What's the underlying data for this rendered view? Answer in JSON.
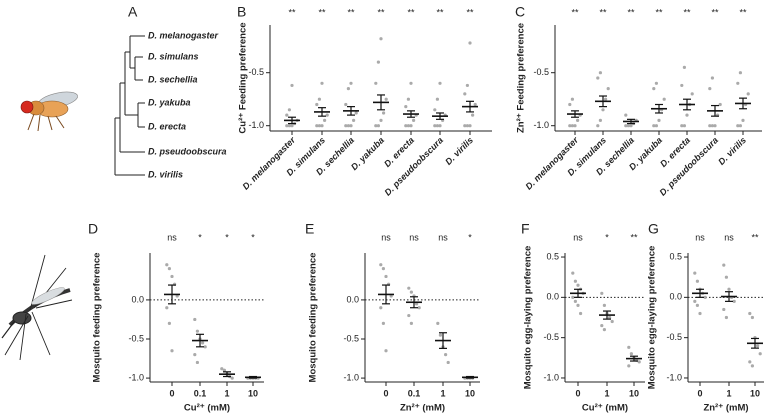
{
  "panel_a": {
    "label": "A",
    "species": [
      "D. melanogaster",
      "D. simulans",
      "D. sechellia",
      "D. yakuba",
      "D. erecta",
      "D. pseudoobscura",
      "D. virilis"
    ]
  },
  "chart_data": [
    {
      "type": "dot",
      "label": "B",
      "ylabel": "Cu²⁺ Feeding preference",
      "categories": [
        "D. melanogaster",
        "D. simulans",
        "D. sechellia",
        "D. yakuba",
        "D. erecta",
        "D. pseudoobscura",
        "D. virilis"
      ],
      "significance": [
        "**",
        "**",
        "**",
        "**",
        "**",
        "**",
        "**"
      ],
      "means": [
        -0.95,
        -0.87,
        -0.86,
        -0.78,
        -0.89,
        -0.91,
        -0.82
      ],
      "sems": [
        0.03,
        0.04,
        0.04,
        0.07,
        0.03,
        0.03,
        0.05
      ],
      "points": [
        [
          -1,
          -1,
          -1,
          -0.98,
          -0.95,
          -0.9,
          -0.85,
          -0.62
        ],
        [
          -1,
          -1,
          -1,
          -0.95,
          -0.9,
          -0.8,
          -0.75,
          -0.6
        ],
        [
          -1,
          -1,
          -1,
          -0.95,
          -0.88,
          -0.8,
          -0.65,
          -0.6
        ],
        [
          -1,
          -1,
          -0.95,
          -0.88,
          -0.75,
          -0.6,
          -0.4,
          -0.18
        ],
        [
          -1,
          -1,
          -1,
          -0.95,
          -0.9,
          -0.82,
          -0.75,
          -0.6
        ],
        [
          -1,
          -1,
          -1,
          -0.95,
          -0.9,
          -0.85,
          -0.75,
          -0.6
        ],
        [
          -1,
          -1,
          -1,
          -0.9,
          -0.8,
          -0.7,
          -0.62,
          -0.22
        ]
      ],
      "ylim": [
        -1.05,
        -0.05
      ],
      "yticks": [
        {
          "value": -1,
          "label": "-1.0"
        },
        -0.5
      ]
    },
    {
      "type": "dot",
      "label": "C",
      "ylabel": "Zn²⁺ Feeding preference",
      "categories": [
        "D. melanogaster",
        "D. simulans",
        "D. sechellia",
        "D. yakuba",
        "D. erecta",
        "D. pseudoobscura",
        "D. virilis"
      ],
      "significance": [
        "**",
        "**",
        "**",
        "**",
        "**",
        "**",
        "**"
      ],
      "means": [
        -0.89,
        -0.77,
        -0.96,
        -0.84,
        -0.8,
        -0.86,
        -0.79
      ],
      "sems": [
        0.03,
        0.05,
        0.02,
        0.04,
        0.05,
        0.05,
        0.05
      ],
      "points": [
        [
          -1,
          -1,
          -1,
          -0.95,
          -0.9,
          -0.8,
          -0.75
        ],
        [
          -1,
          -0.95,
          -0.85,
          -0.75,
          -0.65,
          -0.55,
          -0.5
        ],
        [
          -1,
          -1,
          -1,
          -0.98,
          -0.95,
          -0.9
        ],
        [
          -1,
          -1,
          -0.95,
          -0.85,
          -0.75,
          -0.65,
          -0.6
        ],
        [
          -1,
          -1,
          -0.9,
          -0.8,
          -0.7,
          -0.62,
          -0.45
        ],
        [
          -1,
          -1,
          -1,
          -0.9,
          -0.8,
          -0.65,
          -0.55
        ],
        [
          -1,
          -1,
          -0.95,
          -0.8,
          -0.7,
          -0.6,
          -0.5
        ]
      ],
      "ylim": [
        -1.05,
        -0.05
      ],
      "yticks": [
        {
          "value": -1,
          "label": "-1.0"
        },
        -0.5
      ]
    },
    {
      "type": "dot",
      "label": "D",
      "ylabel": "Mosquito feeding preference",
      "xlabel": "Cu²⁺ (mM)",
      "categories": [
        "0",
        "0.1",
        "1",
        "10"
      ],
      "significance": [
        "ns",
        "*",
        "*",
        "*"
      ],
      "means": [
        0.07,
        -0.52,
        -0.95,
        -0.99
      ],
      "sems": [
        0.12,
        0.08,
        0.03,
        0.01
      ],
      "points": [
        [
          0.45,
          0.4,
          0.3,
          0.2,
          0.05,
          -0.1,
          -0.3,
          -0.65
        ],
        [
          -0.25,
          -0.4,
          -0.5,
          -0.55,
          -0.6,
          -0.7,
          -0.8
        ],
        [
          -0.88,
          -0.9,
          -0.95,
          -0.98,
          -1
        ],
        [
          -1,
          -1,
          -1,
          -1,
          -1
        ]
      ],
      "hline": 0,
      "ylim": [
        -1.05,
        0.6
      ],
      "yticks": [
        {
          "value": -1,
          "label": "-1.0"
        },
        -0.5,
        {
          "value": 0,
          "label": "0.0"
        }
      ]
    },
    {
      "type": "dot",
      "label": "E",
      "ylabel": "Mosquito feeding preference",
      "xlabel": "Zn²⁺ (mM)",
      "categories": [
        "0",
        "0.1",
        "1",
        "10"
      ],
      "significance": [
        "ns",
        "ns",
        "ns",
        "*"
      ],
      "means": [
        0.07,
        -0.03,
        -0.52,
        -0.99
      ],
      "sems": [
        0.12,
        0.07,
        0.1,
        0.01
      ],
      "points": [
        [
          0.45,
          0.4,
          0.3,
          0.2,
          0.05,
          -0.1,
          -0.3,
          -0.65
        ],
        [
          0.15,
          0.1,
          0.05,
          -0.05,
          -0.1,
          -0.2,
          -0.3
        ],
        [
          -0.3,
          -0.45,
          -0.6,
          -0.7,
          -0.8
        ],
        [
          -1,
          -1,
          -1,
          -1
        ]
      ],
      "hline": 0,
      "ylim": [
        -1.05,
        0.6
      ],
      "yticks": [
        {
          "value": -1,
          "label": "-1.0"
        },
        -0.5,
        {
          "value": 0,
          "label": "0.0"
        }
      ]
    },
    {
      "type": "dot",
      "label": "F",
      "ylabel": "Mosquito egg-laying preference",
      "xlabel": "Cu²⁺ (mM)",
      "categories": [
        "0",
        "1",
        "10"
      ],
      "significance": [
        "ns",
        "*",
        "**"
      ],
      "means": [
        0.05,
        -0.22,
        -0.76
      ],
      "sems": [
        0.05,
        0.05,
        0.03
      ],
      "points": [
        [
          0.3,
          0.2,
          0.15,
          0.1,
          0.05,
          0,
          -0.05,
          -0.1,
          -0.2
        ],
        [
          0.05,
          -0.1,
          -0.2,
          -0.25,
          -0.3,
          -0.35,
          -0.4
        ],
        [
          -0.62,
          -0.7,
          -0.75,
          -0.78,
          -0.8,
          -0.85
        ]
      ],
      "hline": 0,
      "ylim": [
        -1.05,
        0.55
      ],
      "yticks": [
        {
          "value": -1,
          "label": "-1.0"
        },
        -0.5,
        {
          "value": 0,
          "label": "0.0"
        },
        0.5
      ]
    },
    {
      "type": "dot",
      "label": "G",
      "ylabel": "Mosquito egg-laying preference",
      "xlabel": "Zn²⁺ (mM)",
      "categories": [
        "0",
        "1",
        "10"
      ],
      "significance": [
        "ns",
        "ns",
        "**"
      ],
      "means": [
        0.05,
        0.01,
        -0.57
      ],
      "sems": [
        0.05,
        0.06,
        0.06
      ],
      "points": [
        [
          0.3,
          0.2,
          0.1,
          0.05,
          0,
          -0.05,
          -0.1,
          -0.2
        ],
        [
          0.4,
          0.25,
          0.1,
          0,
          -0.05,
          -0.15,
          -0.25
        ],
        [
          -0.2,
          -0.25,
          -0.5,
          -0.6,
          -0.7,
          -0.8,
          -0.85
        ]
      ],
      "hline": 0,
      "ylim": [
        -1.05,
        0.55
      ],
      "yticks": [
        {
          "value": -1,
          "label": "-1.0"
        },
        -0.5,
        {
          "value": 0,
          "label": "0.0"
        },
        0.5
      ]
    }
  ]
}
